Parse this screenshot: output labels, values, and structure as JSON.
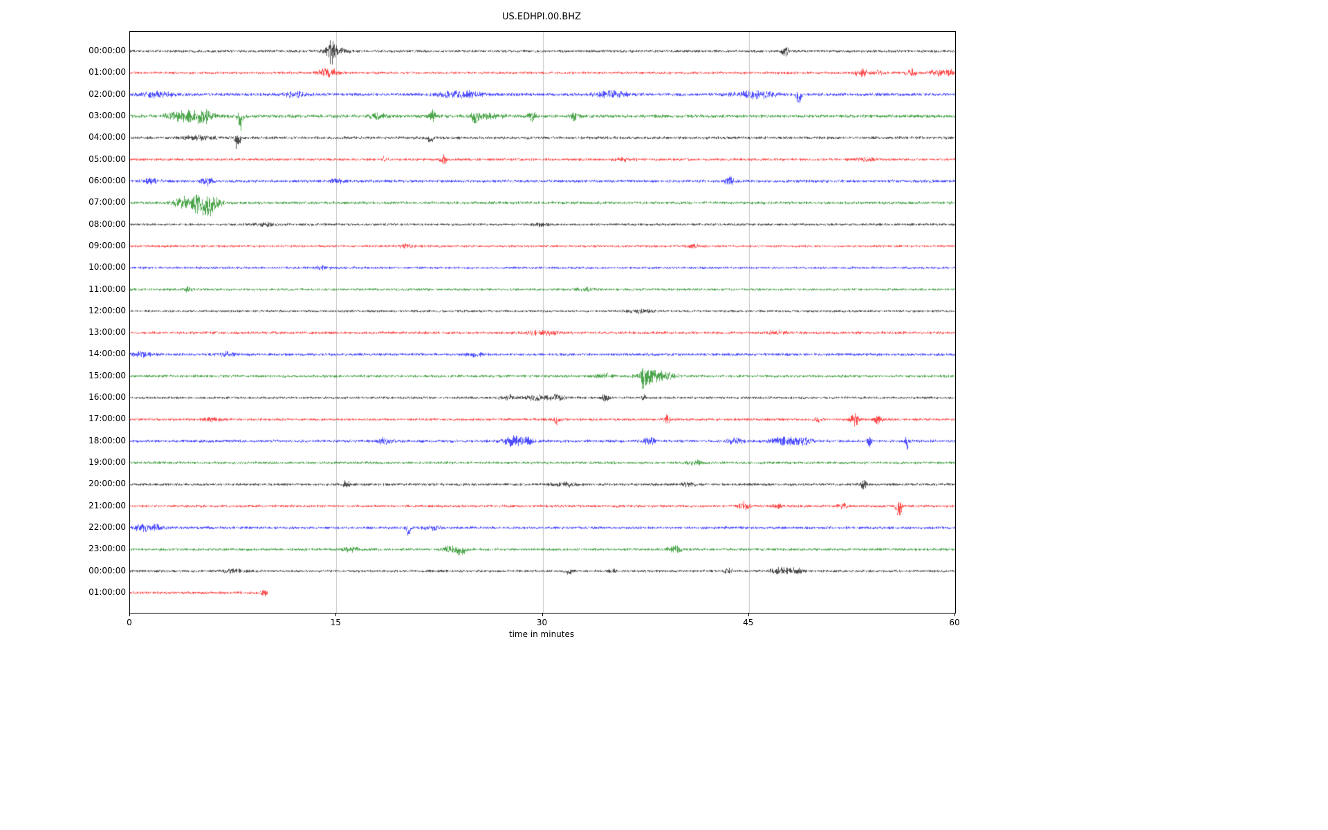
{
  "title": "US.EDHPI.00.BHZ",
  "chart_data": {
    "type": "line",
    "subtype": "seismogram-dayplot",
    "title": "US.EDHPI.00.BHZ",
    "xlabel": "time in minutes",
    "ylabel": "",
    "xlim": [
      0,
      60
    ],
    "xticks": [
      0,
      15,
      30,
      45,
      60
    ],
    "grid": "vertical-gridlines-at-15-30-45",
    "grid_color": "#b0b0b0",
    "trace_colors_cycle": [
      "#000000",
      "#ff0000",
      "#0000ff",
      "#008000"
    ],
    "rows": [
      {
        "label": "00:00:00",
        "color": "#000000",
        "duration_min": 60,
        "base_amp": 2.2,
        "events": [
          {
            "t": 14.6,
            "dur": 0.5,
            "amp": 16
          },
          {
            "t": 15.0,
            "dur": 1.5,
            "amp": 5
          },
          {
            "t": 47.6,
            "dur": 0.4,
            "amp": 9
          }
        ]
      },
      {
        "label": "01:00:00",
        "color": "#ff0000",
        "duration_min": 60,
        "base_amp": 2.2,
        "events": [
          {
            "t": 14.4,
            "dur": 1.2,
            "amp": 7
          },
          {
            "t": 53.2,
            "dur": 0.8,
            "amp": 6
          },
          {
            "t": 54.3,
            "dur": 0.5,
            "amp": 5
          },
          {
            "t": 56.8,
            "dur": 0.6,
            "amp": 6
          },
          {
            "t": 58.5,
            "dur": 1.0,
            "amp": 4
          },
          {
            "t": 59.5,
            "dur": 0.8,
            "amp": 5
          }
        ]
      },
      {
        "label": "02:00:00",
        "color": "#0000ff",
        "duration_min": 60,
        "base_amp": 2.6,
        "events": [
          {
            "t": 2.0,
            "dur": 2.0,
            "amp": 4
          },
          {
            "t": 12.0,
            "dur": 1.5,
            "amp": 4
          },
          {
            "t": 24.0,
            "dur": 2.5,
            "amp": 5
          },
          {
            "t": 35.0,
            "dur": 2.0,
            "amp": 5
          },
          {
            "t": 45.5,
            "dur": 2.5,
            "amp": 5
          },
          {
            "t": 48.6,
            "dur": 0.3,
            "amp": 12,
            "dir": -1
          }
        ]
      },
      {
        "label": "03:00:00",
        "color": "#008000",
        "duration_min": 60,
        "base_amp": 2.8,
        "events": [
          {
            "t": 3.2,
            "dur": 1.0,
            "amp": 6
          },
          {
            "t": 4.5,
            "dur": 1.5,
            "amp": 8
          },
          {
            "t": 5.5,
            "dur": 1.0,
            "amp": 7
          },
          {
            "t": 8.0,
            "dur": 0.3,
            "amp": 14,
            "dir": -1
          },
          {
            "t": 18.0,
            "dur": 1.0,
            "amp": 4
          },
          {
            "t": 22.0,
            "dur": 0.4,
            "amp": 8
          },
          {
            "t": 25.0,
            "dur": 0.5,
            "amp": 6,
            "dir": -1
          },
          {
            "t": 26.0,
            "dur": 2.0,
            "amp": 3
          },
          {
            "t": 29.2,
            "dur": 0.4,
            "amp": 9
          },
          {
            "t": 32.3,
            "dur": 0.5,
            "amp": 7
          }
        ]
      },
      {
        "label": "04:00:00",
        "color": "#000000",
        "duration_min": 60,
        "base_amp": 2.4,
        "events": [
          {
            "t": 5.0,
            "dur": 2.0,
            "amp": 3
          },
          {
            "t": 7.8,
            "dur": 0.35,
            "amp": 13,
            "dir": -1
          },
          {
            "t": 21.8,
            "dur": 0.4,
            "amp": 6,
            "dir": -1
          }
        ]
      },
      {
        "label": "05:00:00",
        "color": "#ff0000",
        "duration_min": 60,
        "base_amp": 2.2,
        "events": [
          {
            "t": 18.5,
            "dur": 0.3,
            "amp": 4
          },
          {
            "t": 22.8,
            "dur": 0.4,
            "amp": 8
          },
          {
            "t": 36.0,
            "dur": 1.0,
            "amp": 3
          },
          {
            "t": 53.5,
            "dur": 0.8,
            "amp": 3
          }
        ]
      },
      {
        "label": "06:00:00",
        "color": "#0000ff",
        "duration_min": 60,
        "base_amp": 2.4,
        "events": [
          {
            "t": 1.5,
            "dur": 1.0,
            "amp": 4
          },
          {
            "t": 5.6,
            "dur": 0.7,
            "amp": 6
          },
          {
            "t": 15.0,
            "dur": 1.0,
            "amp": 3
          },
          {
            "t": 43.6,
            "dur": 0.6,
            "amp": 7
          }
        ]
      },
      {
        "label": "07:00:00",
        "color": "#008000",
        "duration_min": 60,
        "base_amp": 2.4,
        "events": [
          {
            "t": 3.6,
            "dur": 0.8,
            "amp": 8
          },
          {
            "t": 4.6,
            "dur": 1.2,
            "amp": 12
          },
          {
            "t": 5.5,
            "dur": 0.9,
            "amp": 14,
            "dir": -1
          },
          {
            "t": 6.3,
            "dur": 0.8,
            "amp": 6
          }
        ]
      },
      {
        "label": "08:00:00",
        "color": "#000000",
        "duration_min": 60,
        "base_amp": 2.0,
        "events": [
          {
            "t": 10.0,
            "dur": 1.5,
            "amp": 2.5
          },
          {
            "t": 30.0,
            "dur": 1.0,
            "amp": 2.5
          }
        ]
      },
      {
        "label": "09:00:00",
        "color": "#ff0000",
        "duration_min": 60,
        "base_amp": 2.0,
        "events": [
          {
            "t": 20.0,
            "dur": 1.0,
            "amp": 2.5
          },
          {
            "t": 41.0,
            "dur": 1.0,
            "amp": 2.5
          }
        ]
      },
      {
        "label": "10:00:00",
        "color": "#0000ff",
        "duration_min": 60,
        "base_amp": 2.0,
        "events": [
          {
            "t": 14.0,
            "dur": 1.0,
            "amp": 2.5
          }
        ]
      },
      {
        "label": "11:00:00",
        "color": "#008000",
        "duration_min": 60,
        "base_amp": 2.0,
        "events": [
          {
            "t": 4.2,
            "dur": 0.5,
            "amp": 4
          },
          {
            "t": 33.0,
            "dur": 1.0,
            "amp": 2.5
          }
        ]
      },
      {
        "label": "12:00:00",
        "color": "#000000",
        "duration_min": 60,
        "base_amp": 2.0,
        "events": [
          {
            "t": 37.0,
            "dur": 1.5,
            "amp": 2.5
          }
        ]
      },
      {
        "label": "13:00:00",
        "color": "#ff0000",
        "duration_min": 60,
        "base_amp": 2.3,
        "events": [
          {
            "t": 30.0,
            "dur": 2.0,
            "amp": 3
          },
          {
            "t": 47.0,
            "dur": 1.0,
            "amp": 3
          }
        ]
      },
      {
        "label": "14:00:00",
        "color": "#0000ff",
        "duration_min": 60,
        "base_amp": 2.3,
        "events": [
          {
            "t": 1.0,
            "dur": 1.5,
            "amp": 4
          },
          {
            "t": 7.0,
            "dur": 1.0,
            "amp": 3.5
          },
          {
            "t": 25.0,
            "dur": 1.0,
            "amp": 3
          }
        ]
      },
      {
        "label": "15:00:00",
        "color": "#008000",
        "duration_min": 60,
        "base_amp": 2.3,
        "events": [
          {
            "t": 34.5,
            "dur": 1.0,
            "amp": 3.5
          },
          {
            "t": 37.3,
            "dur": 0.25,
            "amp": 26
          },
          {
            "t": 37.8,
            "dur": 1.2,
            "amp": 10
          },
          {
            "t": 38.8,
            "dur": 1.5,
            "amp": 5
          }
        ]
      },
      {
        "label": "16:00:00",
        "color": "#000000",
        "duration_min": 60,
        "base_amp": 2.0,
        "events": [
          {
            "t": 27.5,
            "dur": 1.0,
            "amp": 4
          },
          {
            "t": 29.5,
            "dur": 1.2,
            "amp": 5
          },
          {
            "t": 31.0,
            "dur": 1.0,
            "amp": 4
          },
          {
            "t": 34.5,
            "dur": 0.5,
            "amp": 6
          },
          {
            "t": 37.3,
            "dur": 0.3,
            "amp": 5
          }
        ]
      },
      {
        "label": "17:00:00",
        "color": "#ff0000",
        "duration_min": 60,
        "base_amp": 2.2,
        "events": [
          {
            "t": 6.0,
            "dur": 1.0,
            "amp": 3
          },
          {
            "t": 31.0,
            "dur": 0.4,
            "amp": 6,
            "dir": -1
          },
          {
            "t": 39.0,
            "dur": 0.4,
            "amp": 8
          },
          {
            "t": 50.0,
            "dur": 0.4,
            "amp": 4
          },
          {
            "t": 52.7,
            "dur": 0.5,
            "amp": 11
          },
          {
            "t": 54.3,
            "dur": 0.5,
            "amp": 7
          }
        ]
      },
      {
        "label": "18:00:00",
        "color": "#0000ff",
        "duration_min": 60,
        "base_amp": 2.4,
        "events": [
          {
            "t": 18.5,
            "dur": 1.0,
            "amp": 4
          },
          {
            "t": 27.8,
            "dur": 1.0,
            "amp": 8
          },
          {
            "t": 28.8,
            "dur": 0.8,
            "amp": 5
          },
          {
            "t": 37.7,
            "dur": 0.8,
            "amp": 6
          },
          {
            "t": 44.0,
            "dur": 1.0,
            "amp": 4
          },
          {
            "t": 47.5,
            "dur": 1.5,
            "amp": 6
          },
          {
            "t": 49.0,
            "dur": 1.0,
            "amp": 5
          },
          {
            "t": 53.7,
            "dur": 0.3,
            "amp": 10
          },
          {
            "t": 56.5,
            "dur": 0.25,
            "amp": 12
          }
        ]
      },
      {
        "label": "19:00:00",
        "color": "#008000",
        "duration_min": 60,
        "base_amp": 2.2,
        "events": [
          {
            "t": 41.0,
            "dur": 1.0,
            "amp": 3
          }
        ]
      },
      {
        "label": "20:00:00",
        "color": "#000000",
        "duration_min": 60,
        "base_amp": 2.2,
        "events": [
          {
            "t": 15.7,
            "dur": 0.4,
            "amp": 7
          },
          {
            "t": 31.5,
            "dur": 1.5,
            "amp": 3
          },
          {
            "t": 40.5,
            "dur": 1.0,
            "amp": 3.5
          },
          {
            "t": 53.3,
            "dur": 0.4,
            "amp": 6
          }
        ]
      },
      {
        "label": "21:00:00",
        "color": "#ff0000",
        "duration_min": 60,
        "base_amp": 2.2,
        "events": [
          {
            "t": 44.6,
            "dur": 0.7,
            "amp": 6
          },
          {
            "t": 47.0,
            "dur": 0.5,
            "amp": 4
          },
          {
            "t": 51.8,
            "dur": 0.6,
            "amp": 6
          },
          {
            "t": 55.9,
            "dur": 0.35,
            "amp": 13,
            "dir": -1
          }
        ]
      },
      {
        "label": "22:00:00",
        "color": "#0000ff",
        "duration_min": 60,
        "base_amp": 2.3,
        "events": [
          {
            "t": 0.8,
            "dur": 0.8,
            "amp": 6
          },
          {
            "t": 1.8,
            "dur": 0.8,
            "amp": 5
          },
          {
            "t": 20.2,
            "dur": 0.3,
            "amp": 7,
            "dir": -1
          },
          {
            "t": 22.0,
            "dur": 1.0,
            "amp": 3.5
          }
        ]
      },
      {
        "label": "23:00:00",
        "color": "#008000",
        "duration_min": 60,
        "base_amp": 2.2,
        "events": [
          {
            "t": 16.0,
            "dur": 1.0,
            "amp": 3
          },
          {
            "t": 23.2,
            "dur": 0.8,
            "amp": 5
          },
          {
            "t": 24.0,
            "dur": 0.6,
            "amp": 6,
            "dir": -1
          },
          {
            "t": 39.5,
            "dur": 0.8,
            "amp": 6
          }
        ]
      },
      {
        "label": "00:00:00",
        "color": "#000000",
        "duration_min": 60,
        "base_amp": 2.1,
        "events": [
          {
            "t": 7.5,
            "dur": 1.5,
            "amp": 2.8
          },
          {
            "t": 32.0,
            "dur": 0.5,
            "amp": 4,
            "dir": -1
          },
          {
            "t": 35.0,
            "dur": 0.4,
            "amp": 4
          },
          {
            "t": 43.5,
            "dur": 0.5,
            "amp": 4
          },
          {
            "t": 47.3,
            "dur": 1.2,
            "amp": 5
          },
          {
            "t": 48.4,
            "dur": 0.8,
            "amp": 4
          }
        ]
      },
      {
        "label": "01:00:00",
        "color": "#ff0000",
        "duration_min": 10,
        "base_amp": 2.3,
        "events": [
          {
            "t": 9.8,
            "dur": 0.4,
            "amp": 4
          }
        ]
      }
    ]
  }
}
